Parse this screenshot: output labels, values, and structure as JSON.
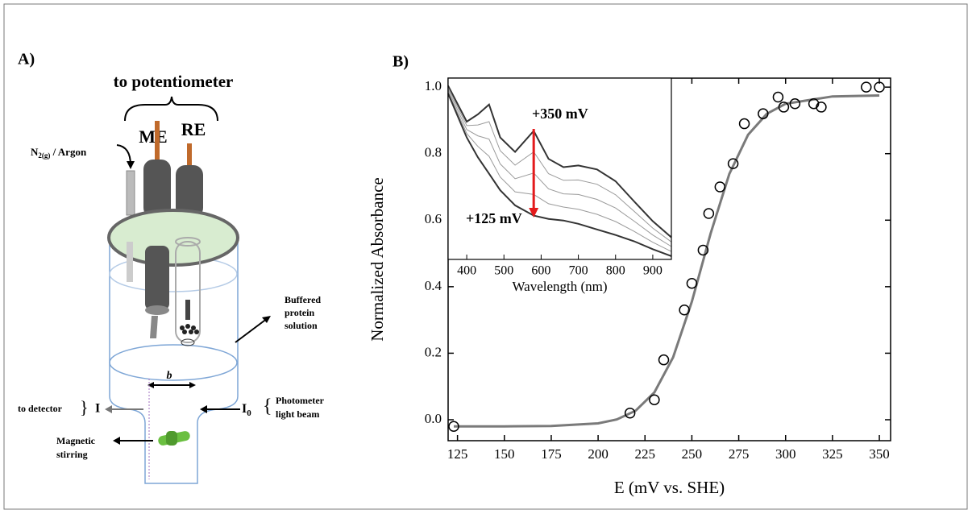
{
  "panel_a": {
    "label": "A)",
    "potentiometer": "to potentiometer",
    "gas": {
      "main": "N",
      "sub": "2(g)",
      "rest": " / Argon"
    },
    "me": "ME",
    "re": "RE",
    "solution": [
      "Buffered",
      "protein",
      "solution"
    ],
    "path_length": "b",
    "detector": "to detector",
    "transmitted": "I",
    "incident": {
      "main": "I",
      "sub": "0"
    },
    "beam": [
      "Photometer",
      "light beam"
    ],
    "stirring": [
      "Magnetic",
      "stirring"
    ]
  },
  "chart_data": [
    {
      "type": "scatter",
      "panel_label": "B)",
      "xlabel": "E (mV vs. SHE)",
      "ylabel": "Normalized Absorbance",
      "x": [
        123,
        217,
        230,
        235,
        246,
        250,
        256,
        259,
        265,
        272,
        278,
        288,
        296,
        299,
        305,
        315,
        319,
        343,
        350
      ],
      "values": [
        -0.02,
        0.02,
        0.06,
        0.18,
        0.33,
        0.41,
        0.51,
        0.62,
        0.7,
        0.77,
        0.89,
        0.92,
        0.97,
        0.94,
        0.95,
        0.95,
        0.94,
        1.0,
        1.0
      ],
      "color": "#000000",
      "fit": {
        "color": "#7a7a7a",
        "x": [
          123,
          150,
          175,
          200,
          210,
          220,
          230,
          240,
          250,
          256,
          260,
          270,
          280,
          290,
          300,
          325,
          350
        ],
        "values": [
          -0.02,
          -0.02,
          -0.019,
          -0.011,
          0.001,
          0.027,
          0.082,
          0.188,
          0.355,
          0.478,
          0.56,
          0.739,
          0.857,
          0.92,
          0.95,
          0.972,
          0.975
        ]
      },
      "xlim": [
        120,
        356
      ],
      "ylim": [
        -0.063,
        1.027
      ],
      "xticks": [
        125,
        150,
        175,
        200,
        225,
        250,
        275,
        300,
        325,
        350
      ],
      "yticks": [
        {
          "value": 0,
          "label": "0.0"
        },
        {
          "value": 0.2,
          "label": "0.2"
        },
        {
          "value": 0.4,
          "label": "0.4"
        },
        {
          "value": 0.6,
          "label": "0.6"
        },
        {
          "value": 0.8,
          "label": "0.8"
        },
        {
          "value": 1,
          "label": "1.0"
        }
      ]
    },
    {
      "type": "line",
      "xlabel": "Wavelength (nm)",
      "x": [
        350,
        400,
        430,
        460,
        490,
        530,
        580,
        620,
        660,
        700,
        750,
        800,
        850,
        900,
        950
      ],
      "series": [
        {
          "color": "#333333",
          "values": [
            1.007,
            0.898,
            0.92,
            0.95,
            0.85,
            0.806,
            0.87,
            0.785,
            0.76,
            0.765,
            0.753,
            0.717,
            0.656,
            0.596,
            0.547
          ]
        },
        {
          "color": "#9a9a9a",
          "values": [
            1.001,
            0.886,
            0.888,
            0.898,
            0.81,
            0.766,
            0.806,
            0.74,
            0.72,
            0.721,
            0.708,
            0.676,
            0.626,
            0.575,
            0.533
          ]
        },
        {
          "color": "#9a9a9a",
          "values": [
            0.995,
            0.874,
            0.855,
            0.845,
            0.77,
            0.725,
            0.742,
            0.694,
            0.679,
            0.677,
            0.662,
            0.636,
            0.596,
            0.554,
            0.519
          ]
        },
        {
          "color": "#9a9a9a",
          "values": [
            0.989,
            0.862,
            0.823,
            0.793,
            0.73,
            0.685,
            0.677,
            0.649,
            0.639,
            0.632,
            0.617,
            0.595,
            0.565,
            0.532,
            0.504
          ]
        },
        {
          "color": "#333333",
          "values": [
            0.983,
            0.85,
            0.79,
            0.74,
            0.69,
            0.644,
            0.613,
            0.603,
            0.598,
            0.588,
            0.571,
            0.554,
            0.535,
            0.511,
            0.49
          ]
        }
      ],
      "annotations": [
        "+350 mV",
        "+125 mV"
      ],
      "annotation_color": "#e41a1c",
      "xlim": [
        350,
        950
      ],
      "ylim": [
        0.48,
        1.03
      ],
      "xticks": [
        400,
        500,
        600,
        700,
        800,
        900
      ]
    }
  ]
}
